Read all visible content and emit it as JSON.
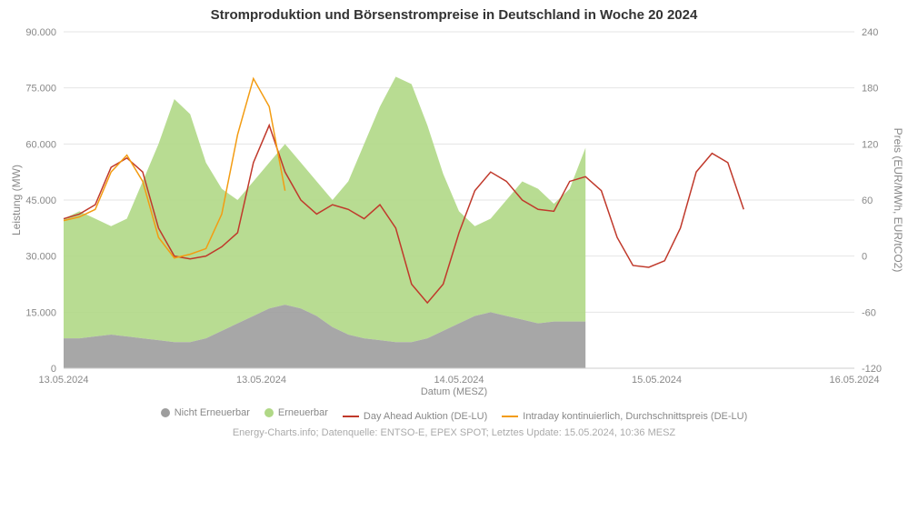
{
  "chart": {
    "type": "area+line",
    "title": "Stromproduktion und Börsenstrompreise in Deutschland in Woche 20 2024",
    "background_color": "#ffffff",
    "grid_color": "#e5e5e5",
    "title_fontsize": 15,
    "label_fontsize": 12,
    "tick_fontsize": 11,
    "x": {
      "title": "Datum (MESZ)",
      "ticks": [
        "13.05.2024",
        "13.05.2024",
        "14.05.2024",
        "15.05.2024",
        "16.05.2024"
      ],
      "tick_positions": [
        0,
        0.25,
        0.5,
        0.75,
        1.0
      ],
      "range": [
        0,
        1
      ]
    },
    "y_left": {
      "title": "Leistung (MW)",
      "min": 0,
      "max": 90000,
      "step": 15000,
      "tick_labels": [
        "0",
        "15.000",
        "30.000",
        "45.000",
        "60.000",
        "75.000",
        "90.000"
      ]
    },
    "y_right": {
      "title": "Preis (EUR/MWh, EUR/tCO2)",
      "min": -120,
      "max": 240,
      "step": 60,
      "tick_labels": [
        "-120",
        "-60",
        "0",
        "60",
        "120",
        "180",
        "240"
      ]
    },
    "series": {
      "nicht_erneuerbar": {
        "label": "Nicht Erneuerbar",
        "color": "#9d9d9d",
        "type": "area",
        "axis": "left",
        "x": [
          0,
          0.02,
          0.04,
          0.06,
          0.08,
          0.1,
          0.12,
          0.14,
          0.16,
          0.18,
          0.2,
          0.22,
          0.24,
          0.26,
          0.28,
          0.3,
          0.32,
          0.34,
          0.36,
          0.38,
          0.4,
          0.42,
          0.44,
          0.46,
          0.48,
          0.5,
          0.52,
          0.54,
          0.56,
          0.58,
          0.6,
          0.62,
          0.64,
          0.66
        ],
        "y": [
          8000,
          8000,
          8500,
          9000,
          8500,
          8000,
          7500,
          7000,
          7000,
          8000,
          10000,
          12000,
          14000,
          16000,
          17000,
          16000,
          14000,
          11000,
          9000,
          8000,
          7500,
          7000,
          7000,
          8000,
          10000,
          12000,
          14000,
          15000,
          14000,
          13000,
          12000,
          12500,
          12500,
          12500
        ]
      },
      "erneuerbar": {
        "label": "Erneuerbar",
        "color": "#b0d886",
        "type": "area",
        "axis": "left",
        "x": [
          0,
          0.02,
          0.04,
          0.06,
          0.08,
          0.1,
          0.12,
          0.14,
          0.16,
          0.18,
          0.2,
          0.22,
          0.24,
          0.26,
          0.28,
          0.3,
          0.32,
          0.34,
          0.36,
          0.38,
          0.4,
          0.42,
          0.44,
          0.46,
          0.48,
          0.5,
          0.52,
          0.54,
          0.56,
          0.58,
          0.6,
          0.62,
          0.64,
          0.66
        ],
        "y": [
          40000,
          42000,
          40000,
          38000,
          40000,
          50000,
          60000,
          72000,
          68000,
          55000,
          48000,
          45000,
          50000,
          55000,
          60000,
          55000,
          50000,
          45000,
          50000,
          60000,
          70000,
          78000,
          76000,
          65000,
          52000,
          42000,
          38000,
          40000,
          45000,
          50000,
          48000,
          44000,
          48000,
          59000
        ]
      },
      "day_ahead": {
        "label": "Day Ahead Auktion (DE-LU)",
        "color": "#c0392b",
        "type": "line",
        "axis": "right",
        "line_width": 1.5,
        "x": [
          0,
          0.02,
          0.04,
          0.06,
          0.08,
          0.1,
          0.12,
          0.14,
          0.16,
          0.18,
          0.2,
          0.22,
          0.24,
          0.26,
          0.28,
          0.3,
          0.32,
          0.34,
          0.36,
          0.38,
          0.4,
          0.42,
          0.44,
          0.46,
          0.48,
          0.5,
          0.52,
          0.54,
          0.56,
          0.58,
          0.6,
          0.62,
          0.64,
          0.66,
          0.68,
          0.7,
          0.72,
          0.74,
          0.76,
          0.78,
          0.8,
          0.82,
          0.84,
          0.86
        ],
        "y": [
          40,
          45,
          55,
          95,
          105,
          90,
          30,
          0,
          -3,
          0,
          10,
          25,
          100,
          140,
          90,
          60,
          45,
          55,
          50,
          40,
          55,
          30,
          -30,
          -50,
          -30,
          25,
          70,
          90,
          80,
          60,
          50,
          48,
          80,
          85,
          70,
          20,
          -10,
          -12,
          -5,
          30,
          90,
          110,
          100,
          50
        ]
      },
      "intraday": {
        "label": "Intraday kontinuierlich, Durchschnittspreis (DE-LU)",
        "color": "#f39c12",
        "type": "line",
        "axis": "right",
        "line_width": 1.5,
        "x": [
          0,
          0.02,
          0.04,
          0.06,
          0.08,
          0.1,
          0.12,
          0.14,
          0.16,
          0.18,
          0.2,
          0.22,
          0.24,
          0.26,
          0.28
        ],
        "y": [
          38,
          42,
          50,
          90,
          108,
          80,
          20,
          -2,
          2,
          8,
          45,
          130,
          190,
          160,
          70
        ]
      }
    },
    "legend_items": [
      {
        "kind": "circle",
        "color": "#9d9d9d",
        "label": "Nicht Erneuerbar"
      },
      {
        "kind": "circle",
        "color": "#b0d886",
        "label": "Erneuerbar"
      },
      {
        "kind": "line",
        "color": "#c0392b",
        "label": "Day Ahead Auktion (DE-LU)"
      },
      {
        "kind": "line",
        "color": "#f39c12",
        "label": "Intraday kontinuierlich, Durchschnittspreis (DE-LU)"
      }
    ],
    "footer": "Energy-Charts.info; Datenquelle: ENTSO-E, EPEX SPOT; Letztes Update: 15.05.2024, 10:36 MESZ"
  }
}
